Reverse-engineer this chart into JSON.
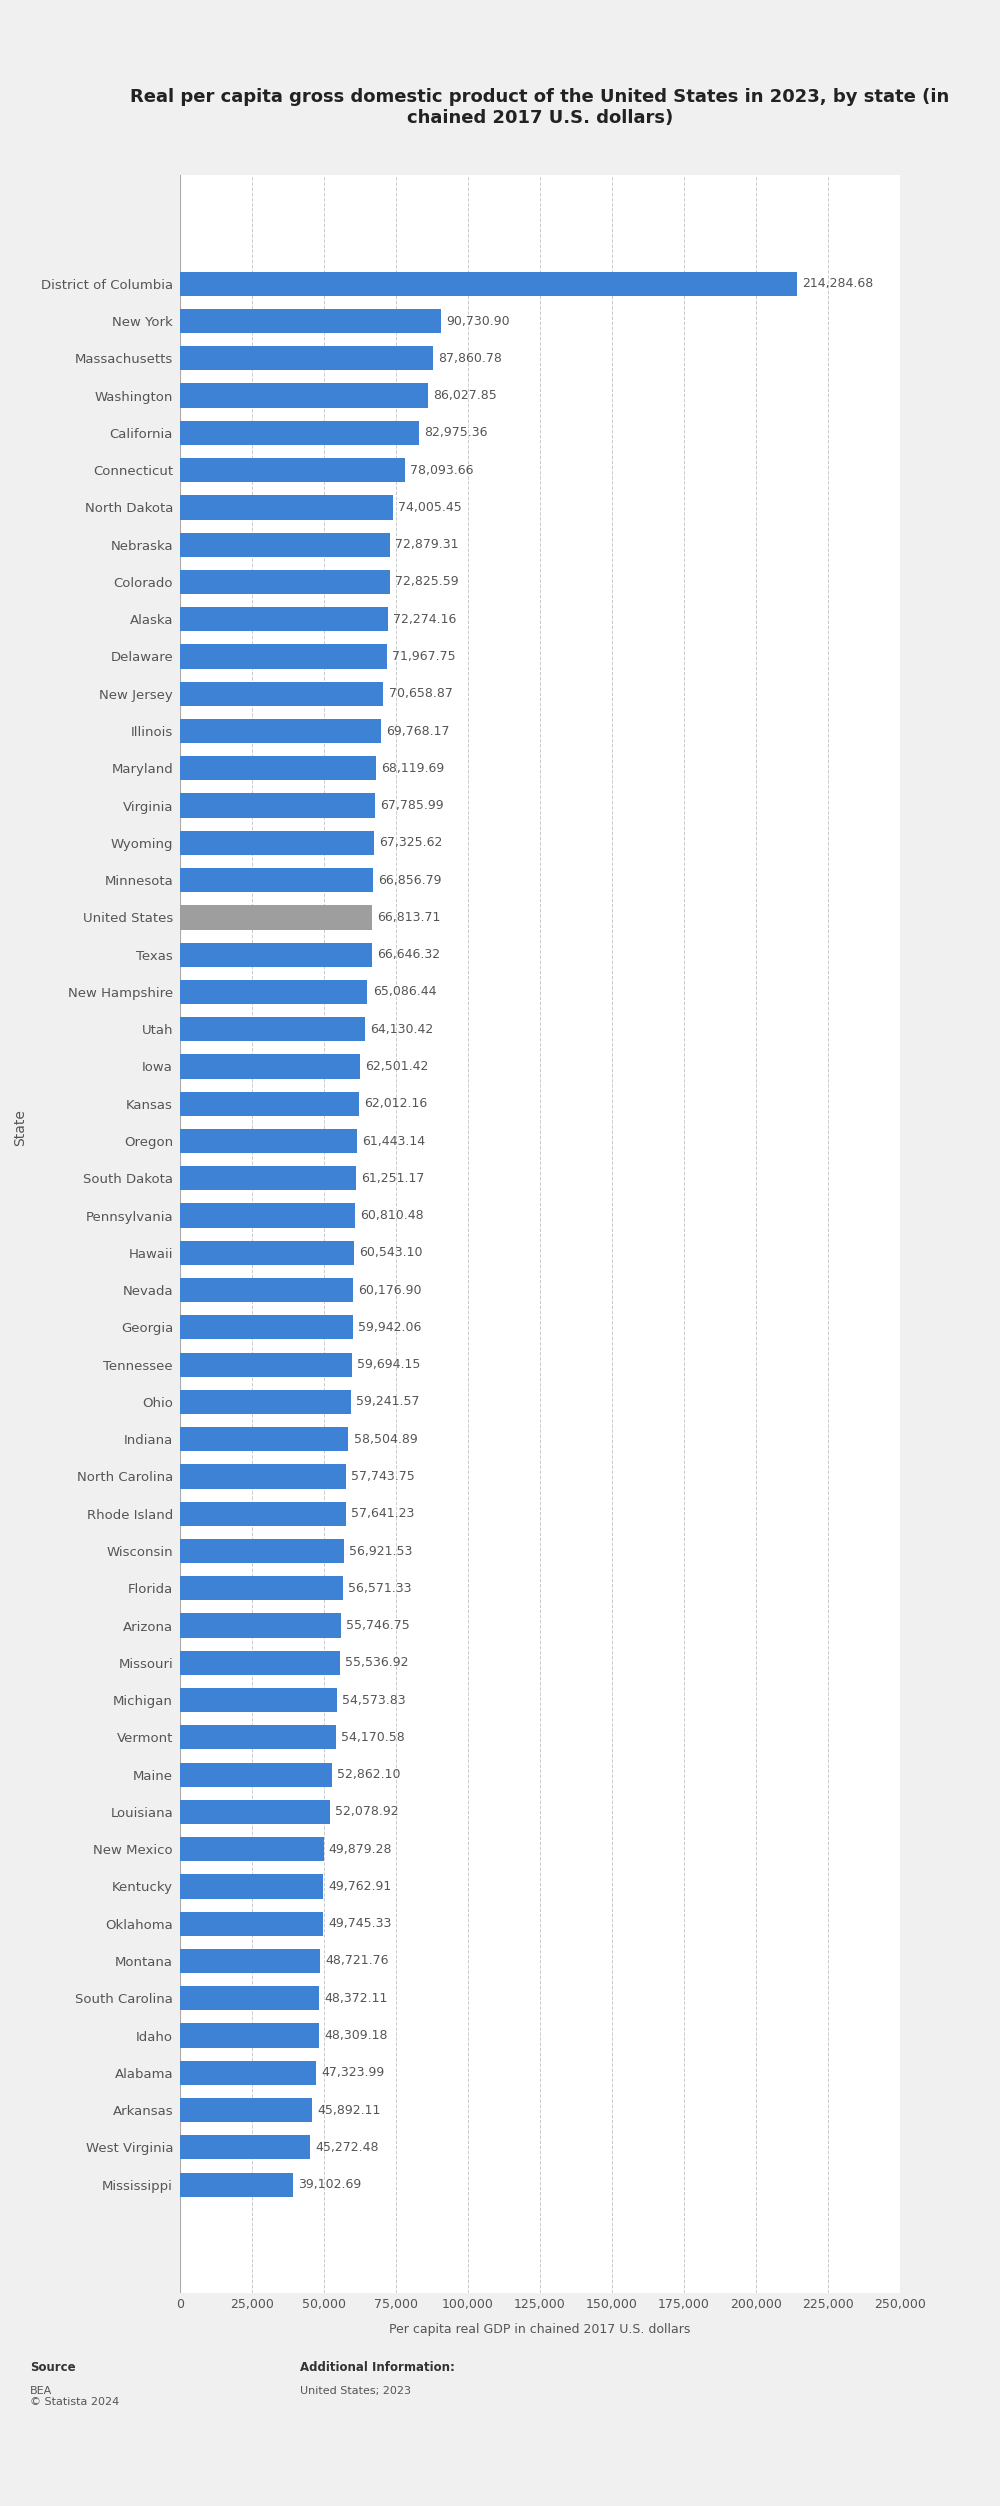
{
  "title": "Real per capita gross domestic product of the United States in 2023, by state (in\nchained 2017 U.S. dollars)",
  "xlabel": "Per capita real GDP in chained 2017 U.S. dollars",
  "ylabel": "State",
  "states": [
    "District of Columbia",
    "New York",
    "Massachusetts",
    "Washington",
    "California",
    "Connecticut",
    "North Dakota",
    "Nebraska",
    "Colorado",
    "Alaska",
    "Delaware",
    "New Jersey",
    "Illinois",
    "Maryland",
    "Virginia",
    "Wyoming",
    "Minnesota",
    "United States",
    "Texas",
    "New Hampshire",
    "Utah",
    "Iowa",
    "Kansas",
    "Oregon",
    "South Dakota",
    "Pennsylvania",
    "Hawaii",
    "Nevada",
    "Georgia",
    "Tennessee",
    "Ohio",
    "Indiana",
    "North Carolina",
    "Rhode Island",
    "Wisconsin",
    "Florida",
    "Arizona",
    "Missouri",
    "Michigan",
    "Vermont",
    "Maine",
    "Louisiana",
    "New Mexico",
    "Kentucky",
    "Oklahoma",
    "Montana",
    "South Carolina",
    "Idaho",
    "Alabama",
    "Arkansas",
    "West Virginia",
    "Mississippi"
  ],
  "values": [
    214284.68,
    90730.9,
    87860.78,
    86027.85,
    82975.36,
    78093.66,
    74005.45,
    72879.31,
    72825.59,
    72274.16,
    71967.75,
    70658.87,
    69768.17,
    68119.69,
    67785.99,
    67325.62,
    66856.79,
    66813.71,
    66646.32,
    65086.44,
    64130.42,
    62501.42,
    62012.16,
    61443.14,
    61251.17,
    60810.48,
    60543.1,
    60176.9,
    59942.06,
    59694.15,
    59241.57,
    58504.89,
    57743.75,
    57641.23,
    56921.53,
    56571.33,
    55746.75,
    55536.92,
    54573.83,
    54170.58,
    52862.1,
    52078.92,
    49879.28,
    49762.91,
    49745.33,
    48721.76,
    48372.11,
    48309.18,
    47323.99,
    45892.11,
    45272.48,
    39102.69
  ],
  "bar_color": "#3d82d4",
  "us_bar_color": "#9e9e9e",
  "background_color": "#f0f0f0",
  "plot_background_color": "#ffffff",
  "grid_color": "#cccccc",
  "text_color": "#555555",
  "title_fontsize": 13,
  "label_fontsize": 9.5,
  "value_fontsize": 9,
  "tick_fontsize": 9,
  "source_label": "Source",
  "source_body": "BEA\n© Statista 2024",
  "additional_label": "Additional Information:",
  "additional_body": "United States; 2023",
  "xlim": [
    0,
    250000
  ],
  "xticks": [
    0,
    25000,
    50000,
    75000,
    100000,
    125000,
    150000,
    175000,
    200000,
    225000,
    250000
  ],
  "xtick_labels": [
    "0",
    "25,000",
    "50,000",
    "75,000",
    "100,000",
    "125,000",
    "150,000",
    "175,000",
    "200,000",
    "225,000",
    "250,000"
  ]
}
